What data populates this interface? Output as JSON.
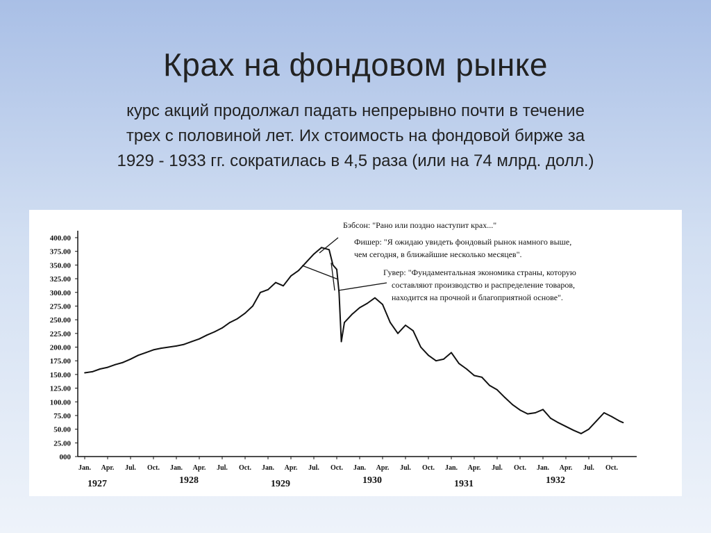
{
  "slide": {
    "title": "Крах на фондовом рынке",
    "subtitle_lines": [
      "курс акций продолжал падать непрерывно почти в течение",
      "трех с половиной лет. Их стоимость на фондовой бирже за",
      "1929 - 1933 гг. сократилась в 4,5 раза (или на 74 млрд. долл.)"
    ]
  },
  "chart_data": {
    "type": "line",
    "ylim": [
      0,
      400
    ],
    "y_ticks": [
      "400.00",
      "375.00",
      "350.00",
      "325.00",
      "300.00",
      "275.00",
      "250.00",
      "225.00",
      "200.00",
      "175.00",
      "150.00",
      "125.00",
      "100.00",
      "75.00",
      "50.00",
      "25.00",
      "000"
    ],
    "month_labels": [
      "Jan.",
      "Apr.",
      "Jul.",
      "Oct.",
      "Jan.",
      "Apr.",
      "Jul.",
      "Oct.",
      "Jan.",
      "Apr.",
      "Jul.",
      "Oct.",
      "Jan.",
      "Apr.",
      "Jul.",
      "Oct.",
      "Jan.",
      "Apr.",
      "Jul.",
      "Oct.",
      "Jan.",
      "Apr.",
      "Jul.",
      "Oct."
    ],
    "year_labels": [
      "1927",
      "1928",
      "1929",
      "1930",
      "1931",
      "1932"
    ],
    "x_unit": "months since Jan. 1927",
    "x": [
      0,
      1,
      2,
      3,
      4,
      5,
      6,
      7,
      8,
      9,
      10,
      11,
      12,
      13,
      14,
      15,
      16,
      17,
      18,
      19,
      20,
      21,
      22,
      23,
      24,
      25,
      26,
      27,
      28,
      29,
      30,
      31,
      32,
      32.5,
      33,
      33.3,
      33.6,
      34,
      35,
      36,
      37,
      38,
      39,
      40,
      41,
      42,
      43,
      44,
      45,
      46,
      47,
      48,
      49,
      50,
      51,
      52,
      53,
      54,
      55,
      56,
      57,
      58,
      59,
      60,
      61,
      62,
      63,
      64,
      65,
      66,
      67,
      68,
      69,
      70,
      70.5
    ],
    "values": [
      153,
      155,
      160,
      163,
      168,
      172,
      178,
      185,
      190,
      195,
      198,
      200,
      202,
      205,
      210,
      215,
      222,
      228,
      235,
      245,
      252,
      262,
      275,
      300,
      305,
      318,
      312,
      330,
      340,
      355,
      370,
      382,
      378,
      350,
      342,
      300,
      210,
      245,
      260,
      272,
      280,
      290,
      278,
      245,
      225,
      240,
      230,
      200,
      185,
      175,
      178,
      190,
      170,
      160,
      148,
      145,
      130,
      122,
      108,
      95,
      85,
      78,
      80,
      86,
      70,
      62,
      55,
      48,
      42,
      50,
      65,
      80,
      73,
      65,
      62
    ],
    "annotations": [
      "Бэбсон: \"Рано или поздно наступит крах...\"",
      "Фишер: \"Я ожидаю увидеть фондовый рынок намного выше,",
      "чем сегодня, в ближайшие несколько месяцев\".",
      "Гувер: \"Фундаментальная экономика страны, которую",
      "составляют производство и распределение товаров,",
      "находится на прочной и благоприятной основе\"."
    ]
  }
}
